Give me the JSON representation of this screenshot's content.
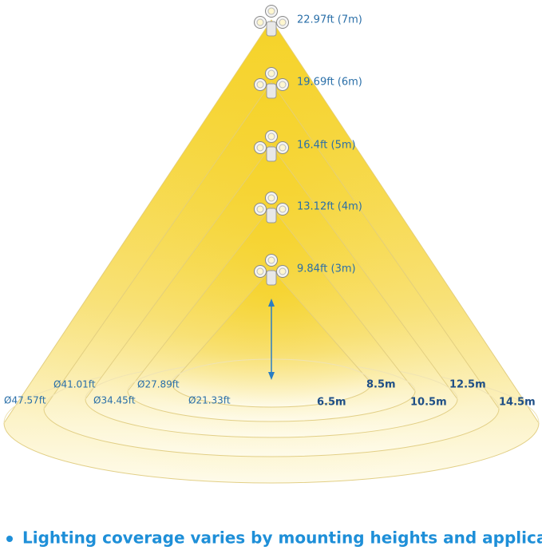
{
  "levels": [
    {
      "height": "22.97ft (7m)",
      "diameter": "Ø47.57ft",
      "distance": "14.5m"
    },
    {
      "height": "19.69ft (6m)",
      "diameter": "Ø41.01ft",
      "distance": "12.5m"
    },
    {
      "height": "16.4ft (5m)",
      "diameter": "Ø34.45ft",
      "distance": "10.5m"
    },
    {
      "height": "13.12ft (4m)",
      "diameter": "Ø27.89ft",
      "distance": "8.5m"
    },
    {
      "height": "9.84ft (3m)",
      "diameter": "Ø21.33ft",
      "distance": "6.5m"
    }
  ],
  "caption": "Lighting coverage varies by mounting heights and applications"
}
